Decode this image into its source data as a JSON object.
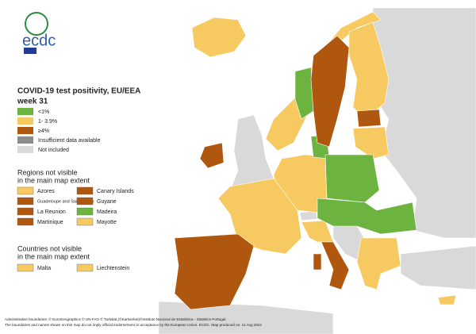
{
  "logo": {
    "text": "ecdc"
  },
  "legend": {
    "title": "COVID-19 test positivity, EU/EEA",
    "subtitle": "week 31",
    "items": [
      {
        "label": "<1%",
        "color": "#6db33f"
      },
      {
        "label": "1- 3.9%",
        "color": "#f7c961"
      },
      {
        "label": "≥4%",
        "color": "#b0570f"
      },
      {
        "label": "Insufficient data available",
        "color": "#8c8c8c"
      },
      {
        "label": "Not included",
        "color": "#d9d9d9"
      }
    ]
  },
  "regions": {
    "title_lines": [
      "Regions not visible",
      "in the main map extent"
    ],
    "items": [
      {
        "label": "Azores",
        "color": "#f7c961"
      },
      {
        "label": "Canary Islands",
        "color": "#b0570f"
      },
      {
        "label": "Guadeloupe and Saint Martin",
        "color": "#b0570f"
      },
      {
        "label": "Guyane",
        "color": "#b0570f"
      },
      {
        "label": "La Reunion",
        "color": "#b0570f"
      },
      {
        "label": "Madeira",
        "color": "#6db33f"
      },
      {
        "label": "Martinique",
        "color": "#b0570f"
      },
      {
        "label": "Mayotte",
        "color": "#f7c961"
      }
    ]
  },
  "countries": {
    "title_lines": [
      "Countries not visible",
      "in the main map extent"
    ],
    "items": [
      {
        "label": "Malta",
        "color": "#f7c961"
      },
      {
        "label": "Liechtenstein",
        "color": "#f7c961"
      }
    ]
  },
  "footer": [
    "Administrative boundaries: © EuroGeographics © UN-FAO © Turkstat.(©Kartverket)©Instituto Nacional de Estatística - Statistics Portugal.",
    "The boundaries and names shown on this map do not imply official endorsement or acceptance by the European Union. ECDC. Map produced on: 11 Aug 2021"
  ]
}
